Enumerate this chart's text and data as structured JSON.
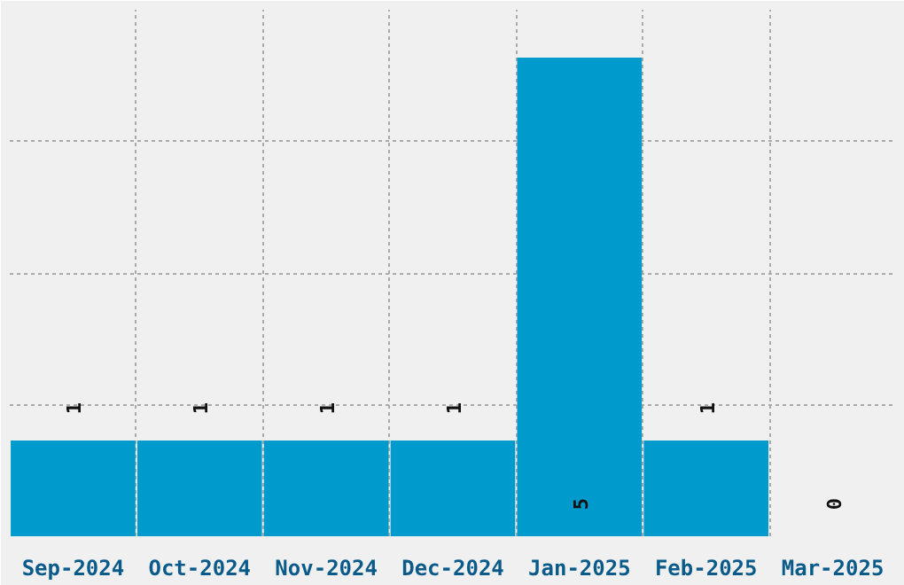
{
  "chart_data": {
    "type": "bar",
    "categories": [
      "Sep-2024",
      "Oct-2024",
      "Nov-2024",
      "Dec-2024",
      "Jan-2025",
      "Feb-2025",
      "Mar-2025"
    ],
    "values": [
      1,
      1,
      1,
      1,
      5,
      1,
      0
    ],
    "color": "#009bcc",
    "data_labels": true,
    "ylim": [
      0,
      5.5
    ],
    "yticks": [
      {
        "value": 1.375,
        "label": null
      },
      {
        "value": 2.75,
        "label": null
      },
      {
        "value": 4.125,
        "label": null
      }
    ],
    "tick_labels": "x",
    "grid": true
  }
}
